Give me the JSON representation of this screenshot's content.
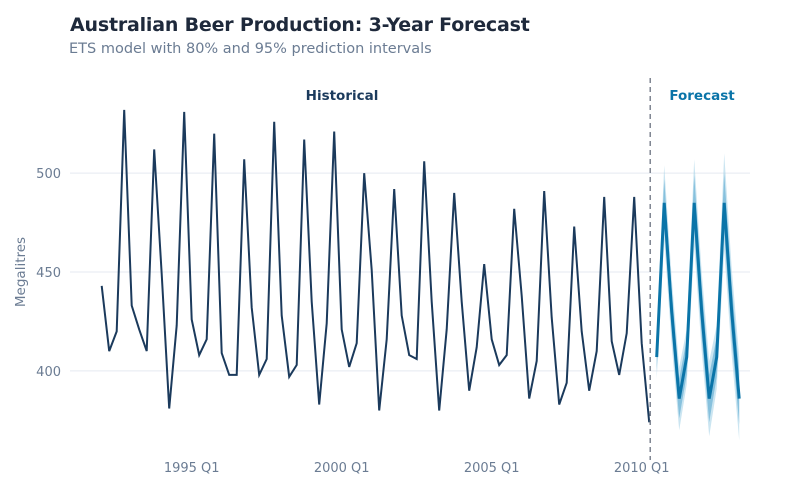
{
  "chart_data": {
    "type": "line",
    "title": "Australian Beer Production: 3-Year Forecast",
    "subtitle": "ETS model with 80% and 95% prediction intervals",
    "xlabel": "",
    "ylabel": "Megalitres",
    "ylim": [
      360,
      537
    ],
    "yticks": [
      400,
      450,
      500
    ],
    "xticks": [
      "1995 Q1",
      "2000 Q1",
      "2005 Q1",
      "2010 Q1"
    ],
    "grid": "horizontal",
    "frequency": "quarterly",
    "annotations": {
      "historical": "Historical",
      "forecast": "Forecast"
    },
    "colors": {
      "historical": "#1b3a5c",
      "forecast": "#0a74a8",
      "pi80": "#5aa9d0",
      "pi95": "#a9d3e8",
      "divider": "#6b7280",
      "grid": "#e5e9f0"
    },
    "historical": {
      "start": "1992 Q1",
      "values": [
        443,
        410,
        420,
        532,
        433,
        421,
        410,
        512,
        449,
        381,
        423,
        531,
        426,
        408,
        416,
        520,
        409,
        398,
        398,
        507,
        432,
        398,
        406,
        526,
        428,
        397,
        403,
        517,
        435,
        383,
        424,
        521,
        421,
        402,
        414,
        500,
        451,
        380,
        416,
        492,
        428,
        408,
        406,
        506,
        435,
        380,
        421,
        490,
        435,
        390,
        412,
        454,
        416,
        403,
        408,
        482,
        438,
        386,
        405,
        491,
        427,
        383,
        394,
        473,
        420,
        390,
        410,
        488,
        415,
        398,
        419,
        488,
        414,
        374
      ]
    },
    "forecast": {
      "start": "2010 Q3",
      "mean": [
        407,
        485,
        430,
        386,
        407,
        485,
        430,
        386,
        407,
        485,
        430,
        386
      ],
      "lo80": [
        400,
        473,
        419,
        376,
        398,
        471,
        417,
        374,
        397,
        470,
        416,
        373
      ],
      "hi80": [
        414,
        497,
        441,
        396,
        416,
        499,
        443,
        398,
        417,
        500,
        444,
        399
      ],
      "lo95": [
        396,
        466,
        413,
        370,
        393,
        463,
        410,
        367,
        391,
        461,
        408,
        365
      ],
      "hi95": [
        418,
        504,
        447,
        402,
        421,
        507,
        450,
        405,
        423,
        510,
        452,
        407
      ]
    }
  }
}
